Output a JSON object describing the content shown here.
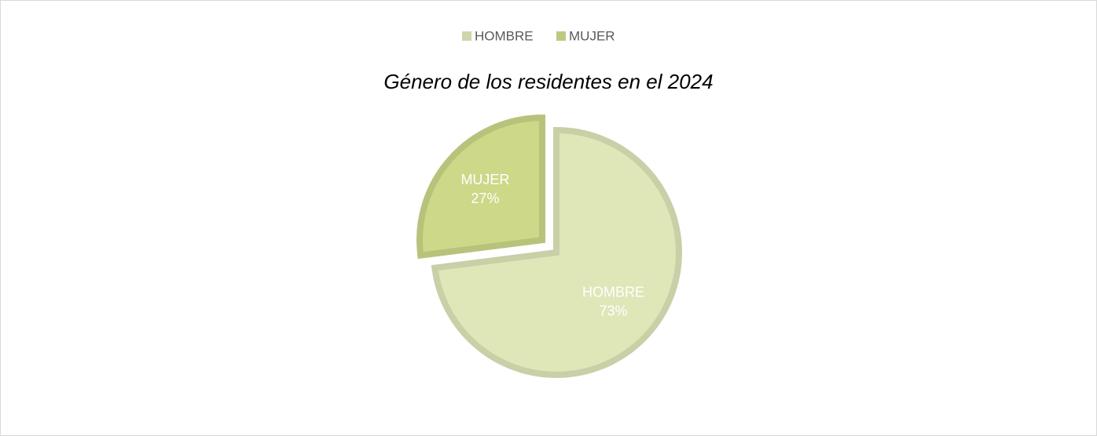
{
  "chart_data": {
    "type": "pie",
    "title": "Género de los residentes en el 2024",
    "categories": [
      "HOMBRE",
      "MUJER"
    ],
    "values": [
      73,
      27
    ],
    "value_labels": [
      "73%",
      "27%"
    ],
    "colors": [
      "#dfe6b8",
      "#cdd888"
    ],
    "legend": "top"
  }
}
